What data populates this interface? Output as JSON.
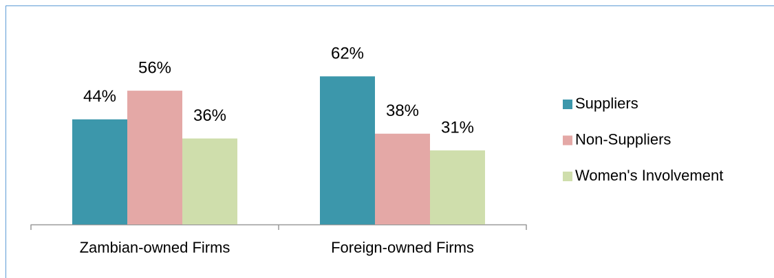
{
  "chart_data": {
    "type": "bar",
    "categories": [
      "Zambian-owned Firms",
      "Foreign-owned Firms"
    ],
    "series": [
      {
        "name": "Suppliers",
        "color": "#3c97ab",
        "values": [
          44,
          62
        ],
        "value_labels": [
          "44%",
          "62%"
        ]
      },
      {
        "name": "Non-Suppliers",
        "color": "#e4a8a6",
        "values": [
          56,
          38
        ],
        "value_labels": [
          "56%",
          "38%"
        ]
      },
      {
        "name": "Women's Involvement",
        "color": "#cfdeac",
        "values": [
          36,
          31
        ],
        "value_labels": [
          "36%",
          "31%"
        ]
      }
    ],
    "legend": "right"
  }
}
